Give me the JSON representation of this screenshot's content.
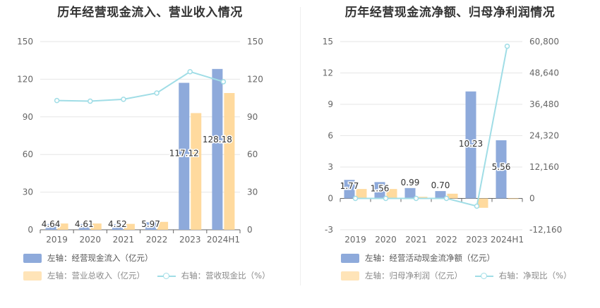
{
  "chart_data": [
    {
      "type": "bar",
      "title": "历年经营现金流入、营业收入情况",
      "categories": [
        "2019",
        "2020",
        "2021",
        "2022",
        "2023",
        "2024H1"
      ],
      "y_left": {
        "min": 0,
        "max": 150,
        "ticks": [
          "0",
          "30",
          "60",
          "90",
          "120",
          "150"
        ]
      },
      "y_right": {
        "min": 0,
        "max": 150,
        "ticks": [
          "0",
          "30",
          "60",
          "90",
          "120",
          "150"
        ]
      },
      "series": [
        {
          "name": "左轴：经营现金流入（亿元）",
          "kind": "bar",
          "axis": "left",
          "color": "#8eaadb",
          "values": [
            4.64,
            4.61,
            4.52,
            5.97,
            117.12,
            128.18
          ],
          "labels": [
            "4.64",
            "4.61",
            "4.52",
            "5.97",
            "117.12",
            "128.18"
          ]
        },
        {
          "name": "左轴：营业总收入（亿元）",
          "kind": "bar",
          "axis": "left",
          "color": "#ffd899",
          "values": [
            5.0,
            5.0,
            4.7,
            6.3,
            93,
            109
          ]
        },
        {
          "name": "右轴：营收现金比（%）",
          "kind": "line",
          "axis": "right",
          "color": "#a0dde6",
          "values": [
            103,
            102.5,
            104,
            109,
            126,
            118
          ]
        }
      ],
      "grid": true,
      "legend": "bottom"
    },
    {
      "type": "bar",
      "title": "历年经营现金流净额、归母净利润情况",
      "categories": [
        "2019",
        "2020",
        "2021",
        "2022",
        "2023",
        "2024H1"
      ],
      "y_left": {
        "min": -3,
        "max": 15,
        "ticks": [
          "-3",
          "0",
          "3",
          "6",
          "9",
          "12",
          "15"
        ]
      },
      "y_right": {
        "min": -12160,
        "max": 60800,
        "ticks": [
          "-12,160",
          "0",
          "12,160",
          "24,320",
          "36,480",
          "48,640",
          "60,800"
        ]
      },
      "series": [
        {
          "name": "左轴：经营活动现金流净额（亿元）",
          "kind": "bar",
          "axis": "left",
          "color": "#8eaadb",
          "values": [
            1.77,
            1.56,
            0.99,
            0.7,
            10.23,
            5.56
          ],
          "labels": [
            "1.77",
            "1.56",
            "0.99",
            "0.70",
            "10.23",
            "5.56"
          ]
        },
        {
          "name": "左轴：归母净利润（亿元）",
          "kind": "bar",
          "axis": "left",
          "color": "#ffd899",
          "values": [
            0.9,
            0.9,
            0.15,
            0.45,
            -0.9,
            -0.05
          ]
        },
        {
          "name": "右轴：净现比（%）",
          "kind": "line",
          "axis": "right",
          "color": "#a0dde6",
          "values": [
            0,
            0,
            0,
            0,
            -3000,
            59000
          ]
        }
      ],
      "grid": true,
      "legend": "bottom"
    }
  ]
}
